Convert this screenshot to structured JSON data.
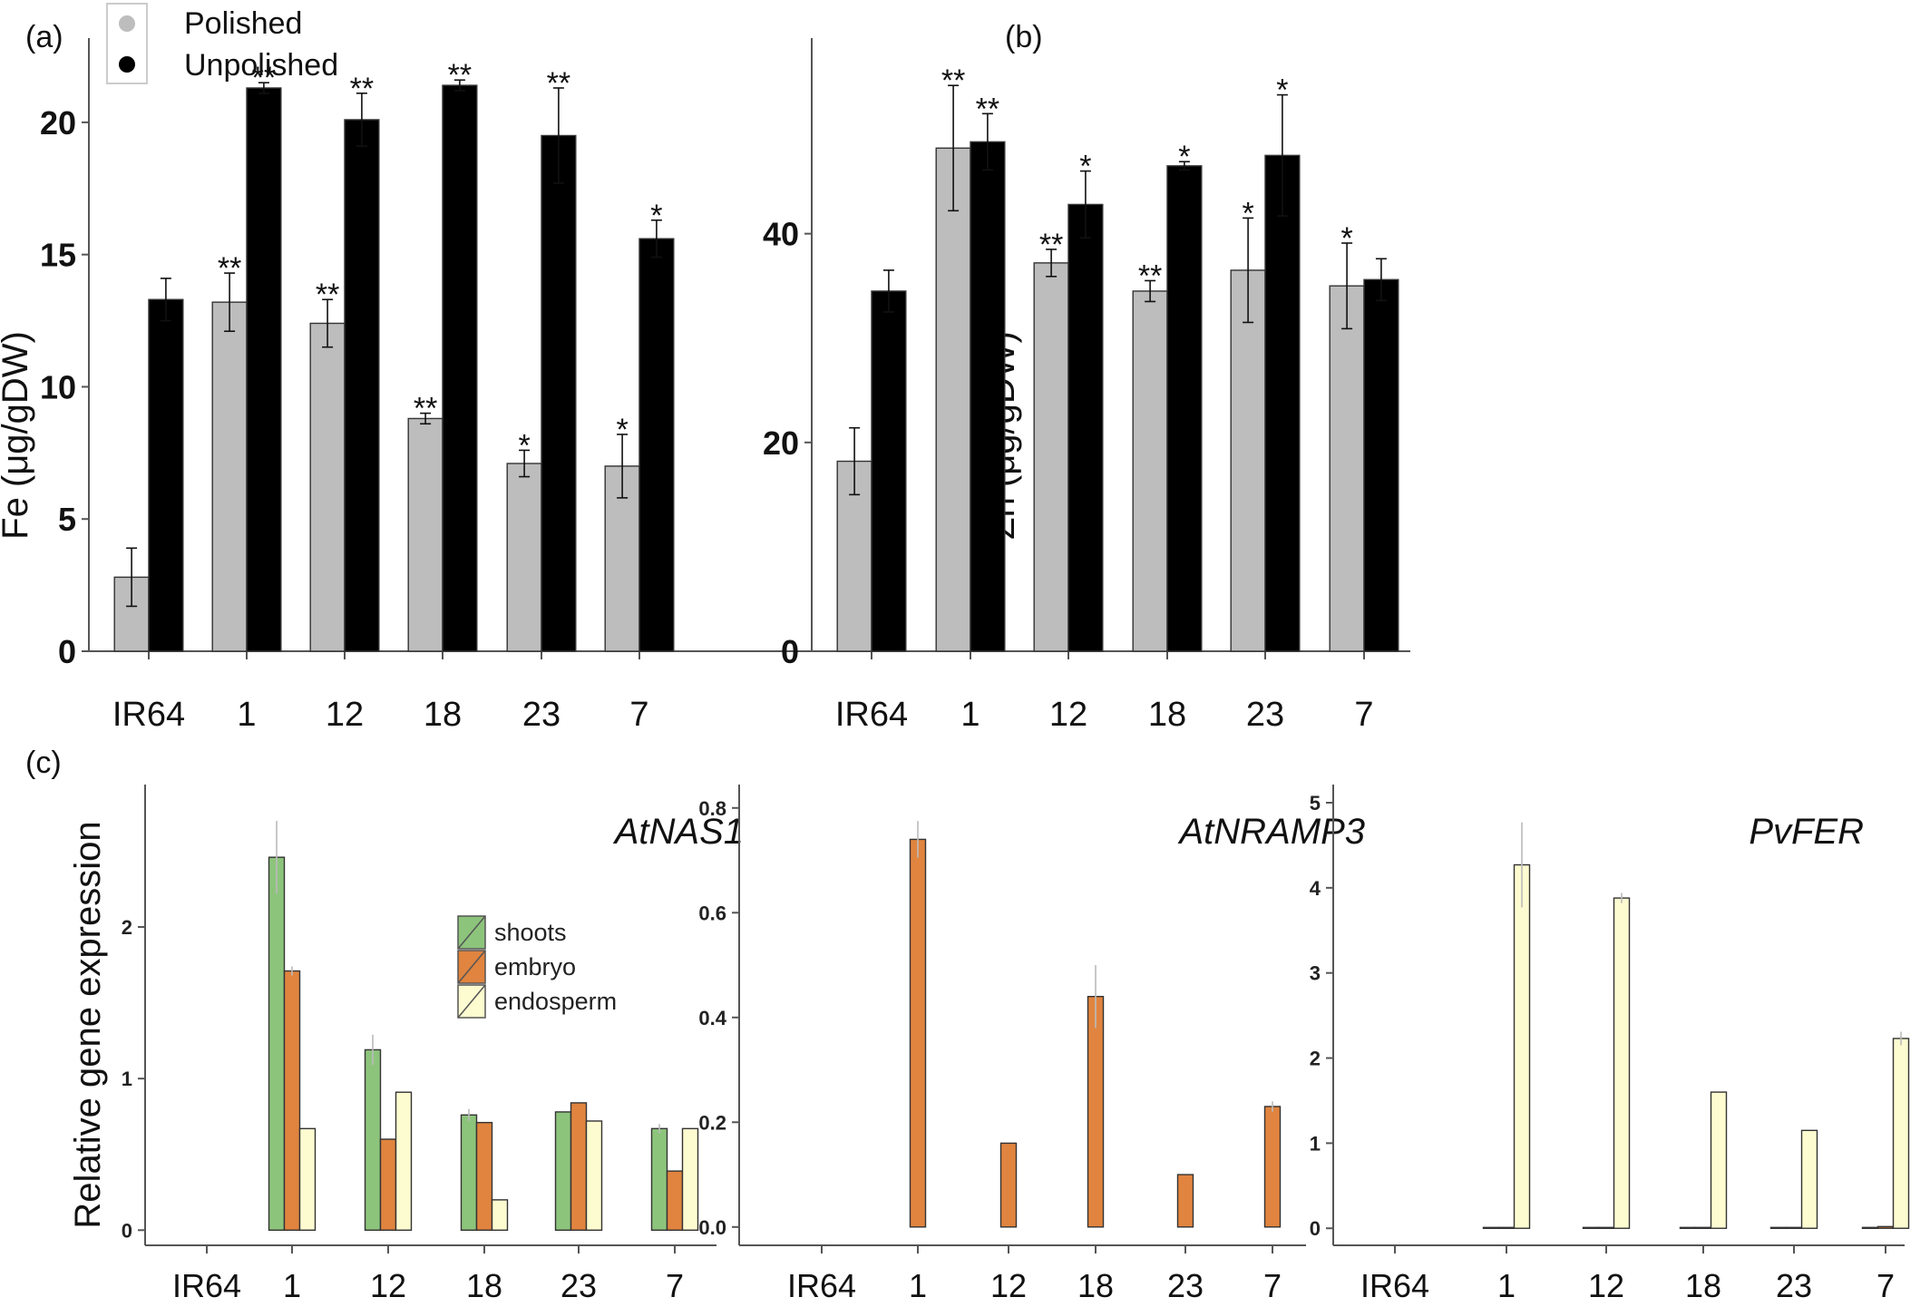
{
  "chart_data": [
    {
      "type": "bar",
      "panel": "(a)",
      "ylabel": "Fe (μg/gDW)",
      "categories": [
        "IR64",
        "1",
        "12",
        "18",
        "23",
        "7"
      ],
      "ylim": [
        0,
        22.5
      ],
      "yticks": [
        0,
        5,
        10,
        15,
        20
      ],
      "legend": {
        "position": "top-left",
        "entries": [
          "Polished",
          "Unpolished"
        ]
      },
      "series": [
        {
          "name": "Polished",
          "color": "#bdbdbd",
          "values": [
            2.8,
            13.2,
            12.4,
            8.8,
            7.1,
            7.0
          ],
          "errors": [
            1.1,
            1.1,
            0.9,
            0.2,
            0.5,
            1.2
          ],
          "stars": [
            "",
            "**",
            "**",
            "**",
            "*",
            "*"
          ]
        },
        {
          "name": "Unpolished",
          "color": "#000000",
          "values": [
            13.3,
            21.3,
            20.1,
            21.4,
            19.5,
            15.6
          ],
          "errors": [
            0.8,
            0.2,
            1.0,
            0.2,
            1.8,
            0.7
          ],
          "stars": [
            "",
            "**",
            "**",
            "**",
            "**",
            "*"
          ]
        }
      ]
    },
    {
      "type": "bar",
      "panel": "(b)",
      "ylabel": "Zn (μg/gDW)",
      "categories": [
        "IR64",
        "1",
        "12",
        "18",
        "23",
        "7"
      ],
      "ylim": [
        0,
        57
      ],
      "yticks": [
        0,
        20,
        40
      ],
      "series": [
        {
          "name": "Polished",
          "color": "#bdbdbd",
          "values": [
            18.2,
            48.2,
            37.2,
            34.5,
            36.5,
            35.0
          ],
          "errors": [
            3.2,
            6.0,
            1.3,
            1.0,
            5.0,
            4.1
          ],
          "stars": [
            "",
            "**",
            "**",
            "**",
            "*",
            "*"
          ]
        },
        {
          "name": "Unpolished",
          "color": "#000000",
          "values": [
            34.5,
            48.8,
            42.8,
            46.5,
            47.5,
            35.6
          ],
          "errors": [
            2.0,
            2.7,
            3.2,
            0.4,
            5.8,
            2.0
          ],
          "stars": [
            "",
            "**",
            "*",
            "*",
            "*",
            ""
          ]
        }
      ]
    },
    {
      "type": "bar",
      "panel": "(c)",
      "title": "AtNAS1",
      "ylabel": "Relative gene expression",
      "categories": [
        "IR64",
        "1",
        "12",
        "18",
        "23",
        "7"
      ],
      "ylim": [
        -0.1,
        2.82
      ],
      "yticks": [
        0,
        1,
        2
      ],
      "legend": {
        "position": "center",
        "entries": [
          "shoots",
          "embryo",
          "endosperm"
        ]
      },
      "series": [
        {
          "name": "shoots",
          "color": "#8dc47c",
          "values": [
            0,
            2.46,
            1.19,
            0.76,
            0.78,
            0.67
          ],
          "errors": [
            0,
            0.24,
            0.1,
            0.04,
            0.0,
            0.03
          ]
        },
        {
          "name": "embryo",
          "color": "#e0843f",
          "values": [
            0,
            1.71,
            0.6,
            0.71,
            0.84,
            0.39
          ],
          "errors": [
            0,
            0.03,
            0.0,
            0.0,
            0.0,
            0.0
          ]
        },
        {
          "name": "endosperm",
          "color": "#fdfbd0",
          "values": [
            0,
            0.67,
            0.91,
            0.2,
            0.72,
            0.67
          ],
          "errors": [
            0,
            0.0,
            0.0,
            0.0,
            0.0,
            0.0
          ]
        }
      ]
    },
    {
      "type": "bar",
      "panel": "",
      "title": "AtNRAMP3",
      "ylabel": "",
      "categories": [
        "IR64",
        "1",
        "12",
        "18",
        "23",
        "7"
      ],
      "ylim": [
        -0.035,
        0.81
      ],
      "yticks": [
        0.0,
        0.2,
        0.4,
        0.6,
        0.8
      ],
      "ytick_labels": [
        "0.0",
        "0.2",
        "0.4",
        "0.6",
        "0.8"
      ],
      "series": [
        {
          "name": "shoots",
          "color": "#8dc47c",
          "values": [
            0,
            0,
            0,
            0,
            0,
            0
          ],
          "errors": [
            0,
            0,
            0,
            0,
            0,
            0
          ]
        },
        {
          "name": "embryo",
          "color": "#e0843f",
          "values": [
            0,
            0.74,
            0.16,
            0.44,
            0.1,
            0.23
          ],
          "errors": [
            0,
            0.035,
            0.0,
            0.06,
            0.0,
            0.01
          ]
        },
        {
          "name": "endosperm",
          "color": "#fdfbd0",
          "values": [
            0,
            0,
            0,
            0,
            0,
            0
          ],
          "errors": [
            0,
            0,
            0,
            0,
            0,
            0
          ]
        }
      ]
    },
    {
      "type": "bar",
      "panel": "",
      "title": "PvFER",
      "ylabel": "",
      "categories": [
        "IR64",
        "1",
        "12",
        "18",
        "23",
        "7"
      ],
      "ylim": [
        -0.2,
        5.0
      ],
      "yticks": [
        0,
        1,
        2,
        3,
        4,
        5
      ],
      "series": [
        {
          "name": "shoots",
          "color": "#8dc47c",
          "values": [
            0,
            0.01,
            0.01,
            0.01,
            0.01,
            0.01
          ],
          "errors": [
            0,
            0,
            0,
            0,
            0,
            0
          ]
        },
        {
          "name": "embryo",
          "color": "#e0843f",
          "values": [
            0,
            0.01,
            0.01,
            0.01,
            0.01,
            0.02
          ],
          "errors": [
            0,
            0,
            0,
            0,
            0,
            0
          ]
        },
        {
          "name": "endosperm",
          "color": "#fdfbd0",
          "values": [
            0,
            4.27,
            3.88,
            1.6,
            1.15,
            2.23
          ],
          "errors": [
            0,
            0.5,
            0.06,
            0.0,
            0.0,
            0.08
          ]
        }
      ]
    }
  ]
}
